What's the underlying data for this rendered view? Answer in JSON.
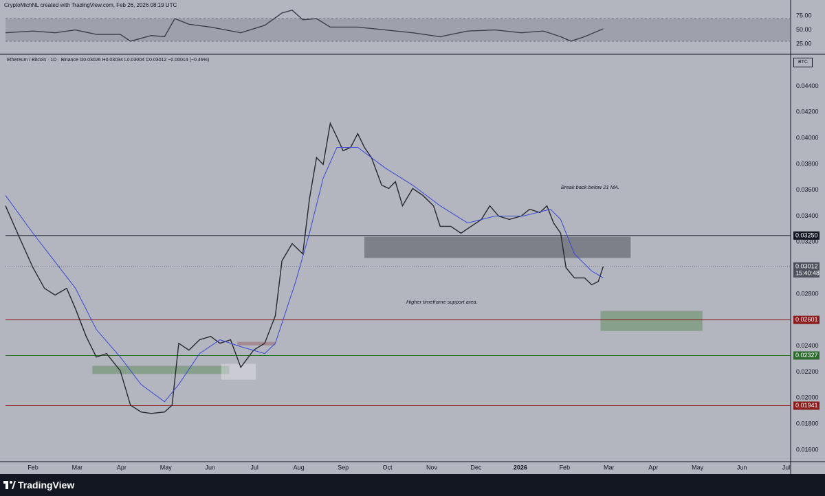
{
  "header": {
    "credit": "CryptoMichNL created with TradingView.com, Feb 26, 2026 08:19 UTC"
  },
  "footer": {
    "brand": "TradingView"
  },
  "chart_data": [
    {
      "type": "line",
      "band": [
        30,
        70
      ],
      "x": [
        -0.62,
        0,
        0.5,
        0.96,
        1.43,
        1.97,
        2.2,
        2.67,
        2.97,
        3.2,
        3.52,
        4.01,
        4.69,
        5.23,
        5.62,
        5.85,
        6.09,
        6.4,
        6.71,
        7.33,
        7.95,
        8.57,
        9.19,
        9.81,
        10.43,
        11.02,
        11.52,
        11.91,
        12.14,
        12.45,
        12.87
      ],
      "series": [
        {
          "color": "#3b3f4a",
          "values": [
            45,
            48,
            45,
            50,
            42,
            42,
            30,
            40,
            38,
            70,
            60,
            55,
            45,
            58,
            80,
            85,
            68,
            70,
            55,
            55,
            50,
            45,
            38,
            48,
            50,
            45,
            48,
            38,
            30,
            38,
            52
          ]
        }
      ],
      "xlim": [
        -0.62,
        17.1
      ],
      "ylim": [
        8,
        86
      ],
      "yticks": [
        {
          "value": 75,
          "label": "75.00"
        },
        {
          "value": 50,
          "label": "50.00"
        },
        {
          "value": 25,
          "label": "25.00"
        }
      ]
    },
    {
      "type": "line",
      "symbol": "Ethereum / Bitcoin · 1D · Binance  O0.03026 H0.03034 L0.03004 C0.03012 −0.00014 (−0.46%)",
      "currency": "BTC",
      "annotations": [
        "Break back below 21 MA.",
        "Higher timeframe support area."
      ],
      "x": [
        -0.62,
        -0.28,
        0,
        0.26,
        0.5,
        0.76,
        0.96,
        1.2,
        1.43,
        1.66,
        1.97,
        2.2,
        2.44,
        2.67,
        2.97,
        3.14,
        3.29,
        3.52,
        3.76,
        4.01,
        4.22,
        4.46,
        4.69,
        4.98,
        5.23,
        5.47,
        5.62,
        5.85,
        6.09,
        6.24,
        6.4,
        6.55,
        6.71,
        6.86,
        7.0,
        7.17,
        7.33,
        7.48,
        7.64,
        7.87,
        8.03,
        8.18,
        8.34,
        8.57,
        8.8,
        9.04,
        9.19,
        9.43,
        9.66,
        9.89,
        10.12,
        10.31,
        10.51,
        10.75,
        11.02,
        11.21,
        11.44,
        11.6,
        11.75,
        11.91,
        12.03,
        12.22,
        12.45,
        12.61,
        12.76,
        12.87
      ],
      "series": [
        {
          "color": "#26282e",
          "values": [
            0.03479,
            0.03215,
            0.03003,
            0.02844,
            0.02792,
            0.02844,
            0.02686,
            0.02474,
            0.02315,
            0.02342,
            0.0221,
            0.01945,
            0.01892,
            0.01881,
            0.01892,
            0.01945,
            0.02421,
            0.02368,
            0.02448,
            0.02474,
            0.02421,
            0.02448,
            0.02236,
            0.02368,
            0.02421,
            0.02633,
            0.03056,
            0.03188,
            0.03109,
            0.03532,
            0.0385,
            0.03797,
            0.04114,
            0.04008,
            0.03903,
            0.03929,
            0.04035,
            0.03929,
            0.0385,
            0.03638,
            0.03612,
            0.03665,
            0.03479,
            0.03612,
            0.03559,
            0.03479,
            0.03321,
            0.03321,
            0.03268,
            0.03321,
            0.03374,
            0.03479,
            0.034,
            0.03374,
            0.034,
            0.03453,
            0.03427,
            0.03479,
            0.03347,
            0.03268,
            0.03003,
            0.02924,
            0.02924,
            0.02871,
            0.02897,
            0.03012
          ]
        },
        {
          "color": "#3a47d6",
          "x": [
            -0.62,
            0,
            0.96,
            1.43,
            1.97,
            2.44,
            2.97,
            3.29,
            3.76,
            4.22,
            4.69,
            5.23,
            5.47,
            5.93,
            6.24,
            6.55,
            6.86,
            7.33,
            7.95,
            8.57,
            9.19,
            9.81,
            10.43,
            11.06,
            11.68,
            11.91,
            12.22,
            12.61,
            12.87
          ],
          "values": [
            0.03559,
            0.03268,
            0.02844,
            0.02527,
            0.02315,
            0.02104,
            0.01971,
            0.02104,
            0.02342,
            0.02448,
            0.02395,
            0.02342,
            0.02421,
            0.02897,
            0.03268,
            0.03691,
            0.03929,
            0.03929,
            0.0377,
            0.03638,
            0.03479,
            0.03347,
            0.034,
            0.034,
            0.03453,
            0.03374,
            0.03109,
            0.02977,
            0.02924
          ]
        }
      ],
      "levels": [
        {
          "value": 0.0325,
          "label": "0.03250",
          "color": "#131722"
        },
        {
          "value": 0.02601,
          "label": "0.02601",
          "color": "#8b1c1c"
        },
        {
          "value": 0.02327,
          "label": "0.02327",
          "color": "#2e6b2e"
        },
        {
          "value": 0.01941,
          "label": "0.01941",
          "color": "#8b1c1c"
        }
      ],
      "last": {
        "value": 0.03012,
        "label": "0.03012",
        "countdown": "15:40:48"
      },
      "zones": [
        {
          "x": [
            7.48,
            13.49
          ],
          "y": [
            0.03077,
            0.03241
          ],
          "color": "rgba(60,62,70,0.45)"
        },
        {
          "x": [
            12.81,
            15.11
          ],
          "y": [
            0.02516,
            0.0267
          ],
          "color": "rgba(90,140,90,0.5)"
        },
        {
          "x": [
            1.34,
            4.43
          ],
          "y": [
            0.02185,
            0.02247
          ],
          "color": "rgba(90,140,90,0.5)"
        },
        {
          "x": [
            4.61,
            5.47
          ],
          "y": [
            0.02405,
            0.02432
          ],
          "color": "rgba(150,90,90,0.45)"
        },
        {
          "x": [
            4.25,
            5.03
          ],
          "y": [
            0.02141,
            0.02263
          ],
          "color": "rgba(230,230,235,0.45)"
        }
      ],
      "xlim": [
        -0.62,
        17.1
      ],
      "ylim": [
        0.0151,
        0.0464
      ],
      "xticks": [
        {
          "value": 0,
          "label": "Feb"
        },
        {
          "value": 1,
          "label": "Mar"
        },
        {
          "value": 2,
          "label": "Apr"
        },
        {
          "value": 3,
          "label": "May"
        },
        {
          "value": 4,
          "label": "Jun"
        },
        {
          "value": 5,
          "label": "Jul"
        },
        {
          "value": 6,
          "label": "Aug"
        },
        {
          "value": 7,
          "label": "Sep"
        },
        {
          "value": 8,
          "label": "Oct"
        },
        {
          "value": 9,
          "label": "Nov"
        },
        {
          "value": 10,
          "label": "Dec"
        },
        {
          "value": 11,
          "label": "2026"
        },
        {
          "value": 12,
          "label": "Feb"
        },
        {
          "value": 13,
          "label": "Mar"
        },
        {
          "value": 14,
          "label": "Apr"
        },
        {
          "value": 15,
          "label": "May"
        },
        {
          "value": 16,
          "label": "Jun"
        },
        {
          "value": 17,
          "label": "Jul"
        }
      ],
      "yticks": [
        {
          "value": 0.044,
          "label": "0.04400"
        },
        {
          "value": 0.042,
          "label": "0.04200"
        },
        {
          "value": 0.04,
          "label": "0.04000"
        },
        {
          "value": 0.038,
          "label": "0.03800"
        },
        {
          "value": 0.036,
          "label": "0.03600"
        },
        {
          "value": 0.034,
          "label": "0.03400"
        },
        {
          "value": 0.032,
          "label": "0.03200"
        },
        {
          "value": 0.03,
          "label": "0.03000"
        },
        {
          "value": 0.028,
          "label": "0.02800"
        },
        {
          "value": 0.026,
          "label": "0.02600"
        },
        {
          "value": 0.024,
          "label": "0.02400"
        },
        {
          "value": 0.022,
          "label": "0.02200"
        },
        {
          "value": 0.02,
          "label": "0.02000"
        },
        {
          "value": 0.018,
          "label": "0.01800"
        },
        {
          "value": 0.016,
          "label": "0.01600"
        }
      ]
    }
  ]
}
